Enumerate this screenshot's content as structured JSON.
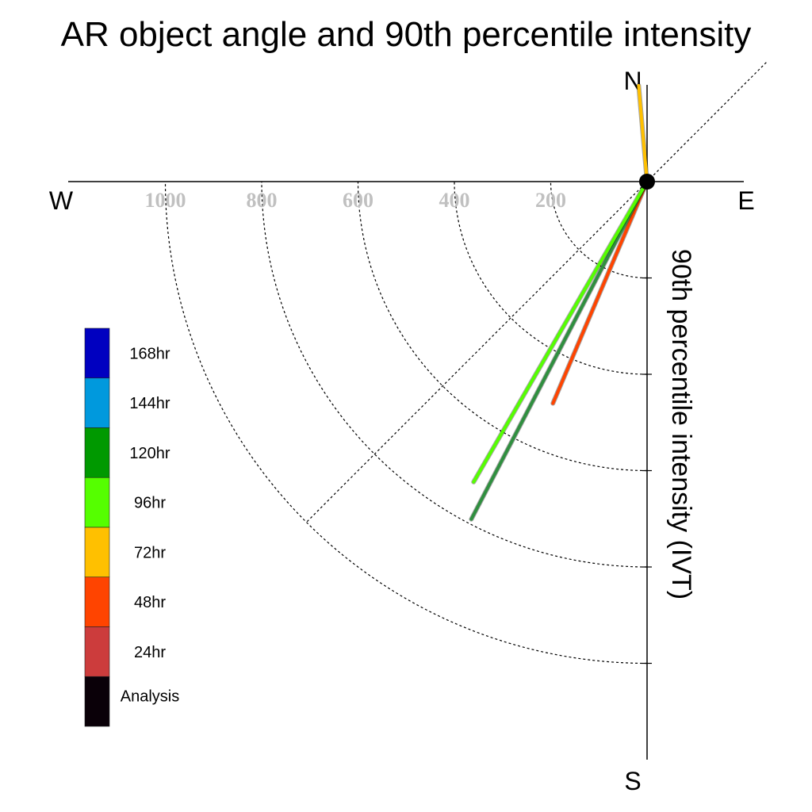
{
  "chart_data": {
    "type": "polar-vector",
    "title": "AR object angle and 90th percentile intensity",
    "ylabel": "90th percentile intensity (IVT)",
    "directions": {
      "north": "N",
      "south": "S",
      "east": "E",
      "west": "W"
    },
    "radial_ticks": [
      200,
      400,
      600,
      800,
      1000
    ],
    "radial_tick_labels": [
      "200",
      "400",
      "600",
      "800",
      "1000"
    ],
    "rmax": 1200,
    "grid": true,
    "legend_position": "left",
    "legend": [
      {
        "label": "168hr",
        "color": "#0000c0"
      },
      {
        "label": "144hr",
        "color": "#0099dd"
      },
      {
        "label": "120hr",
        "color": "#009900"
      },
      {
        "label": "96hr",
        "color": "#55ff00"
      },
      {
        "label": "72hr",
        "color": "#ffc000"
      },
      {
        "label": "48hr",
        "color": "#ff4400"
      },
      {
        "label": "24hr",
        "color": "#cc3c3c"
      },
      {
        "label": "Analysis",
        "color": "#0a0008"
      }
    ],
    "series": [
      {
        "name": "48hr",
        "color": "#ff4400",
        "angle_deg": 203,
        "value": 500
      },
      {
        "name": "120hr",
        "color": "#2f8f3f",
        "angle_deg": 207.5,
        "value": 790
      },
      {
        "name": "96hr",
        "color": "#55ff00",
        "angle_deg": 210,
        "value": 720
      },
      {
        "name": "72hr",
        "color": "#ffc000",
        "angle_deg": 355,
        "value": 200
      }
    ]
  }
}
